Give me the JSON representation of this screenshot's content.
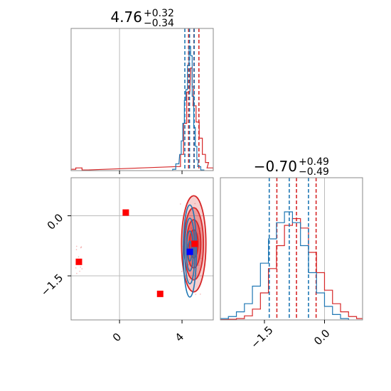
{
  "chart_data": [
    {
      "panel": "marginal-1",
      "type": "histogram",
      "title": {
        "median": "4.76",
        "plus": "+0.32",
        "minus": "−0.34"
      },
      "xlim": [
        -3.1,
        6.0
      ],
      "ticks": [
        0,
        4
      ],
      "tick_labels": [
        "0",
        "4"
      ],
      "grid": true,
      "reference_line": 0,
      "series": [
        {
          "color": "#d62728",
          "quantile_lines": [
            4.42,
            4.76,
            5.08
          ],
          "x": [
            -3.0,
            -2.6,
            -2.2,
            3.8,
            4.0,
            4.2,
            4.4,
            4.6,
            4.7,
            4.8,
            5.0,
            5.2,
            5.4,
            5.6,
            5.8
          ],
          "y": [
            0.01,
            0.02,
            0.005,
            0.03,
            0.12,
            0.35,
            0.58,
            0.76,
            0.62,
            0.48,
            0.36,
            0.24,
            0.12,
            0.06,
            0.02
          ]
        },
        {
          "color": "#1f77b4",
          "quantile_lines": [
            4.18,
            4.48,
            4.78
          ],
          "x": [
            3.5,
            3.7,
            3.9,
            4.0,
            4.1,
            4.2,
            4.3,
            4.4,
            4.5,
            4.6,
            4.7,
            4.8,
            4.9,
            5.0,
            5.1,
            5.3
          ],
          "y": [
            0.01,
            0.05,
            0.12,
            0.22,
            0.35,
            0.52,
            0.6,
            0.78,
            0.92,
            0.85,
            0.55,
            0.32,
            0.18,
            0.08,
            0.03,
            0.005
          ]
        }
      ]
    },
    {
      "panel": "joint",
      "type": "contour",
      "xlim": [
        -3.1,
        6.0
      ],
      "ylim": [
        -2.6,
        0.95
      ],
      "x_ticks": [
        0,
        4
      ],
      "x_tick_labels": [
        "0",
        "4"
      ],
      "y_ticks": [
        0.0,
        -1.5
      ],
      "y_tick_labels": [
        "0.0",
        "−1.5"
      ],
      "grid": true,
      "reference": {
        "x": 0,
        "y": 0
      },
      "red_markers": [
        {
          "x": 0.4,
          "y": 0.08
        },
        {
          "x": -2.6,
          "y": -1.15
        },
        {
          "x": 2.6,
          "y": -1.95
        },
        {
          "x": 4.8,
          "y": -0.7
        }
      ],
      "blue_marker": {
        "x": 4.5,
        "y": -0.9
      },
      "series": [
        {
          "color": "#d62728",
          "center": [
            4.75,
            -0.7
          ],
          "levels": [
            [
              0.28,
              0.35
            ],
            [
              0.45,
              0.6
            ],
            [
              0.62,
              0.9
            ],
            [
              0.78,
              1.2
            ]
          ]
        },
        {
          "color": "#1f77b4",
          "center": [
            4.5,
            -0.88
          ],
          "levels": [
            [
              0.12,
              0.25
            ],
            [
              0.22,
              0.5
            ],
            [
              0.32,
              0.82
            ],
            [
              0.42,
              1.15
            ]
          ]
        }
      ]
    },
    {
      "panel": "marginal-2",
      "type": "histogram",
      "title": {
        "median": "−0.70",
        "plus": "+0.49",
        "minus": "−0.49"
      },
      "xlim": [
        -2.6,
        0.95
      ],
      "ticks": [
        -1.5,
        0.0
      ],
      "tick_labels": [
        "−1.5",
        "0.0"
      ],
      "grid": true,
      "reference_line": 0,
      "series": [
        {
          "color": "#d62728",
          "quantile_lines": [
            -1.19,
            -0.7,
            -0.21
          ],
          "x": [
            -2.5,
            -2.3,
            -2.1,
            -1.9,
            -1.7,
            -1.5,
            -1.3,
            -1.1,
            -0.9,
            -0.7,
            -0.5,
            -0.3,
            -0.1,
            0.1,
            0.3,
            0.5,
            0.7,
            0.9
          ],
          "y": [
            0.002,
            0.005,
            0.01,
            0.03,
            0.08,
            0.2,
            0.38,
            0.55,
            0.7,
            0.75,
            0.68,
            0.5,
            0.35,
            0.22,
            0.12,
            0.06,
            0.025,
            0.01
          ]
        },
        {
          "color": "#1f77b4",
          "quantile_lines": [
            -1.38,
            -0.88,
            -0.4
          ],
          "x": [
            -2.5,
            -2.3,
            -2.1,
            -1.9,
            -1.7,
            -1.5,
            -1.3,
            -1.1,
            -0.9,
            -0.7,
            -0.5,
            -0.3,
            -0.1,
            0.1,
            0.3,
            0.5
          ],
          "y": [
            0.01,
            0.025,
            0.06,
            0.12,
            0.25,
            0.42,
            0.6,
            0.72,
            0.8,
            0.72,
            0.55,
            0.35,
            0.2,
            0.1,
            0.04,
            0.01
          ]
        }
      ]
    }
  ]
}
